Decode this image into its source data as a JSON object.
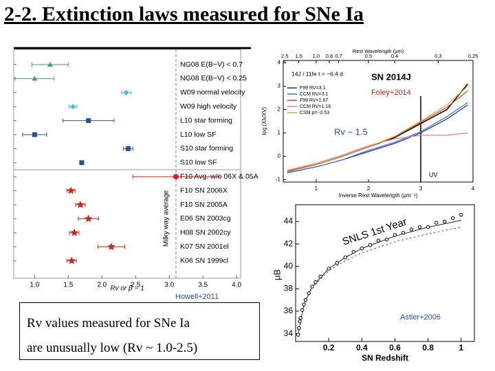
{
  "title": "2-2. Extinction laws measured for SNe Ia",
  "note": {
    "lines": [
      "Rv values measured for SNe Ia",
      "are unusually low (Rv ~ 1.0-2.5)"
    ]
  },
  "chart_data": [
    {
      "type": "errorbar",
      "source": "Howell+2011",
      "xlabel": "Rv or β − 1",
      "categories": [
        "NG08 E(B−V) < 0.7",
        "NG08 E(B−V) < 0.25",
        "W09 normal velocity",
        "W09 high velocity",
        "L10 star forming",
        "L10 low SF",
        "S10 star forming",
        "S10 low SF",
        "F10 Avg. w/o 06X & 05A",
        "F10 SN 2006X",
        "F10 SN 2005A",
        "E06 SN 2003cg",
        "H08 SN 2002cy",
        "K07 SN 2001el",
        "K06 SN 1999cl"
      ],
      "values": [
        1.23,
        1.0,
        2.36,
        1.57,
        1.8,
        1.0,
        2.39,
        1.7,
        3.1,
        1.54,
        1.68,
        1.8,
        1.59,
        2.14,
        1.55
      ],
      "errors": [
        0.27,
        0.29,
        0.07,
        0.06,
        0.38,
        0.18,
        0.07,
        0.03,
        0.64,
        0.06,
        0.07,
        0.15,
        0.07,
        0.2,
        0.07
      ],
      "colors": [
        "#3aa860",
        "#3aa860",
        "#4ab8e0",
        "#4ab8e0",
        "#2b4ea0",
        "#2b4ea0",
        "#2b4ea0",
        "#2b4ea0",
        "#d02020",
        "#d02020",
        "#d02020",
        "#d02020",
        "#d02020",
        "#d02020",
        "#d02020"
      ],
      "markers": [
        "triangle",
        "triangle",
        "diamond",
        "diamond",
        "square",
        "square",
        "square",
        "square",
        "circle",
        "star",
        "star",
        "star",
        "star",
        "star",
        "star"
      ],
      "reference_line": {
        "value": 3.1,
        "label": "Milky way average"
      },
      "xlim": [
        0.69,
        4.06
      ],
      "xticks": [
        {
          "value": 1,
          "label": "1.0"
        },
        1.5,
        {
          "value": 2,
          "label": "2.0"
        },
        2.5,
        {
          "value": 3,
          "label": "3.0"
        },
        3.5,
        {
          "value": 4,
          "label": "4.0"
        }
      ]
    },
    {
      "type": "line",
      "title": "SN 2014J",
      "source": "Foley+2014",
      "annotation": "Rv ~ 1.5",
      "epoch_label": "14J / 11fe  t = −6.4 d",
      "xlabel": "Inverse Rest Wavelength (μm⁻¹)",
      "ylabel": "log (Xλ/XV)",
      "top_xlabel": "Rest Wavelength (μm)",
      "reference_x": {
        "value": 3,
        "label": "UV"
      },
      "series": [
        {
          "color": "#111111",
          "x": [
            0.45,
            1,
            1.5,
            2,
            2.5,
            3,
            3.5,
            3.9
          ],
          "values": [
            -0.65,
            -0.35,
            0.0,
            0.4,
            0.8,
            1.4,
            2.0,
            3.1
          ]
        },
        {
          "name": "F99 RV=3.1",
          "color": "#1a2a8a",
          "x": [
            0.45,
            1,
            1.5,
            2,
            2.5,
            3,
            3.5,
            3.9
          ],
          "values": [
            -0.7,
            -0.45,
            -0.15,
            0.2,
            0.55,
            1.0,
            1.6,
            2.2
          ]
        },
        {
          "name": "CCM RV=3.1",
          "color": "#3a6fd0",
          "x": [
            0.45,
            1,
            1.5,
            2,
            2.5,
            3,
            3.5,
            3.9
          ],
          "values": [
            -0.7,
            -0.45,
            -0.15,
            0.25,
            0.6,
            1.05,
            1.7,
            2.3
          ]
        },
        {
          "name": "F99 RV=1.67",
          "color": "#d23a3a",
          "x": [
            0.45,
            1,
            1.5,
            2,
            2.5,
            3,
            3.5,
            3.9
          ],
          "values": [
            -0.6,
            -0.35,
            0.0,
            0.4,
            0.85,
            1.45,
            2.1,
            2.8
          ]
        },
        {
          "name": "CCM RV=1.18",
          "color": "#e08090",
          "x": [
            0.45,
            1,
            1.5,
            2,
            2.5,
            3,
            3.5,
            3.9
          ],
          "values": [
            -0.6,
            -0.3,
            0.05,
            0.45,
            0.75,
            0.9,
            0.9,
            1.0
          ]
        },
        {
          "name": "CSM p=−2.53",
          "color": "#e8a020",
          "x": [
            0.45,
            1,
            1.5,
            2,
            2.5,
            3,
            3.5,
            3.9
          ],
          "values": [
            -0.65,
            -0.35,
            0.0,
            0.4,
            0.85,
            1.5,
            2.2,
            3.0
          ]
        }
      ],
      "xlim": [
        0.37,
        4.0
      ],
      "ylim": [
        -1.1,
        4.1
      ],
      "xticks": [
        1,
        2,
        3,
        4
      ],
      "yticks": [
        -1,
        0,
        1,
        2,
        3,
        4
      ],
      "top_xticks": [
        2.5,
        1.5,
        {
          "value": 1,
          "label": "1.0"
        },
        0.8,
        0.7,
        0.5,
        0.4,
        0.3,
        0.25
      ]
    },
    {
      "type": "scatter",
      "title": "SNLS 1st Year",
      "source": "Astier+2006",
      "xlabel": "SN Redshift",
      "ylabel": "μB",
      "x": [
        0.015,
        0.02,
        0.025,
        0.03,
        0.04,
        0.05,
        0.06,
        0.08,
        0.1,
        0.12,
        0.15,
        0.2,
        0.25,
        0.3,
        0.35,
        0.4,
        0.45,
        0.5,
        0.55,
        0.6,
        0.65,
        0.7,
        0.75,
        0.8,
        0.85,
        0.9,
        0.95,
        1.0
      ],
      "values": [
        33.9,
        34.5,
        35.1,
        35.4,
        36.1,
        36.6,
        37.0,
        37.6,
        38.2,
        38.6,
        39.1,
        39.8,
        40.3,
        40.8,
        41.3,
        41.6,
        41.9,
        42.3,
        42.4,
        42.8,
        43.0,
        43.3,
        43.5,
        43.5,
        43.9,
        44.0,
        44.3,
        44.6
      ],
      "curves": [
        {
          "color": "#222222",
          "x": [
            0.015,
            0.05,
            0.1,
            0.2,
            0.3,
            0.4,
            0.6,
            0.8,
            1.0
          ],
          "values": [
            33.9,
            36.6,
            38.2,
            39.8,
            40.8,
            41.6,
            42.7,
            43.5,
            44.1
          ]
        },
        {
          "color": "#666666",
          "dashed": true,
          "x": [
            0.015,
            0.05,
            0.1,
            0.2,
            0.3,
            0.4,
            0.6,
            0.8,
            1.0
          ],
          "values": [
            33.9,
            36.6,
            38.1,
            39.6,
            40.5,
            41.2,
            42.2,
            42.9,
            43.5
          ]
        }
      ],
      "xlim": [
        0,
        1.08
      ],
      "ylim": [
        33.3,
        45.5
      ],
      "xticks": [
        0.2,
        0.4,
        0.6,
        0.8,
        1
      ],
      "yticks": [
        34,
        36,
        38,
        40,
        42,
        44
      ]
    }
  ]
}
